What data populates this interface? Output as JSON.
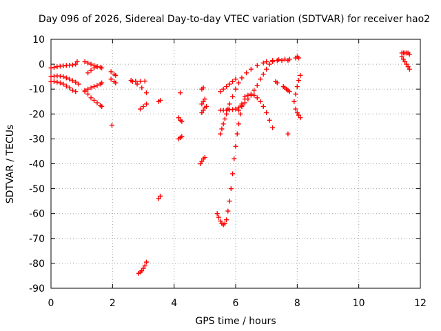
{
  "chart_data": {
    "type": "scatter",
    "title": "Day 096 of 2026, Sidereal Day-to-day VTEC variation (SDTVAR) for receiver hao2",
    "xlabel": "GPS time / hours",
    "ylabel": "SDTVAR / TECUs",
    "xlim": [
      0,
      12
    ],
    "ylim": [
      -90,
      10
    ],
    "xticks": [
      0,
      2,
      4,
      6,
      8,
      10,
      12
    ],
    "yticks": [
      10,
      0,
      -10,
      -20,
      -30,
      -40,
      -50,
      -60,
      -70,
      -80,
      -90
    ],
    "grid": true,
    "marker": "plus",
    "marker_color": "#ff0000",
    "series": [
      {
        "points": [
          [
            0.0,
            -1.5
          ],
          [
            0.1,
            -1.3
          ],
          [
            0.2,
            -1.0
          ],
          [
            0.3,
            -0.8
          ],
          [
            0.4,
            -0.7
          ],
          [
            0.5,
            -0.5
          ],
          [
            0.6,
            -0.4
          ],
          [
            0.7,
            -0.3
          ],
          [
            0.8,
            0.0
          ],
          [
            0.85,
            1.0
          ]
        ]
      },
      {
        "points": [
          [
            0.0,
            -5.0
          ],
          [
            0.1,
            -4.8
          ],
          [
            0.2,
            -4.7
          ],
          [
            0.3,
            -4.8
          ],
          [
            0.4,
            -5.0
          ],
          [
            0.5,
            -5.5
          ],
          [
            0.6,
            -6.0
          ],
          [
            0.7,
            -6.6
          ],
          [
            0.8,
            -7.2
          ],
          [
            0.9,
            -8.0
          ]
        ]
      },
      {
        "points": [
          [
            0.0,
            -7.0
          ],
          [
            0.1,
            -7.0
          ],
          [
            0.2,
            -7.2
          ],
          [
            0.3,
            -7.5
          ],
          [
            0.4,
            -8.0
          ],
          [
            0.5,
            -8.8
          ],
          [
            0.6,
            -9.5
          ],
          [
            0.7,
            -10.5
          ],
          [
            0.8,
            -11.0
          ]
        ]
      },
      {
        "points": [
          [
            1.1,
            1.0
          ],
          [
            1.2,
            0.5
          ],
          [
            1.3,
            0.0
          ],
          [
            1.4,
            -0.5
          ],
          [
            1.5,
            -1.0
          ],
          [
            1.6,
            -1.2
          ],
          [
            1.65,
            -1.5
          ]
        ]
      },
      {
        "points": [
          [
            1.1,
            -10.5
          ],
          [
            1.2,
            -10.0
          ],
          [
            1.3,
            -9.5
          ],
          [
            1.4,
            -9.0
          ],
          [
            1.5,
            -8.5
          ],
          [
            1.6,
            -8.0
          ],
          [
            1.65,
            -7.5
          ]
        ]
      },
      {
        "points": [
          [
            1.1,
            -11.0
          ],
          [
            1.2,
            -12.0
          ],
          [
            1.3,
            -13.5
          ],
          [
            1.4,
            -14.5
          ],
          [
            1.5,
            -15.5
          ],
          [
            1.6,
            -16.5
          ],
          [
            1.65,
            -17.0
          ]
        ]
      },
      {
        "points": [
          [
            1.2,
            -3.5
          ],
          [
            1.3,
            -2.5
          ],
          [
            1.4,
            -1.5
          ],
          [
            1.5,
            -1.0
          ]
        ]
      },
      {
        "points": [
          [
            1.95,
            -3.0
          ],
          [
            2.05,
            -4.0
          ],
          [
            2.1,
            -4.5
          ]
        ]
      },
      {
        "points": [
          [
            1.95,
            -6.0
          ],
          [
            2.05,
            -7.0
          ],
          [
            2.1,
            -7.5
          ]
        ]
      },
      {
        "points": [
          [
            1.98,
            -24.5
          ]
        ]
      },
      {
        "points": [
          [
            2.6,
            -6.5
          ],
          [
            2.75,
            -6.8
          ],
          [
            2.9,
            -6.9
          ],
          [
            3.05,
            -6.8
          ]
        ]
      },
      {
        "points": [
          [
            2.65,
            -7.0
          ],
          [
            2.8,
            -8.0
          ],
          [
            2.95,
            -9.5
          ],
          [
            3.1,
            -11.5
          ]
        ]
      },
      {
        "points": [
          [
            2.9,
            -18.0
          ],
          [
            3.0,
            -17.0
          ],
          [
            3.1,
            -16.0
          ]
        ]
      },
      {
        "points": [
          [
            2.85,
            -84.0
          ],
          [
            2.9,
            -83.5
          ],
          [
            2.95,
            -83.0
          ],
          [
            3.0,
            -82.0
          ],
          [
            3.05,
            -81.0
          ],
          [
            3.1,
            -79.5
          ]
        ]
      },
      {
        "points": [
          [
            3.5,
            -15.0
          ],
          [
            3.55,
            -14.5
          ]
        ]
      },
      {
        "points": [
          [
            3.5,
            -54.0
          ],
          [
            3.55,
            -53.0
          ]
        ]
      },
      {
        "points": [
          [
            4.2,
            -11.5
          ]
        ]
      },
      {
        "points": [
          [
            4.15,
            -21.5
          ],
          [
            4.2,
            -22.5
          ],
          [
            4.25,
            -23.0
          ]
        ]
      },
      {
        "points": [
          [
            4.15,
            -30.0
          ],
          [
            4.2,
            -29.5
          ],
          [
            4.25,
            -29.0
          ]
        ]
      },
      {
        "points": [
          [
            4.9,
            -10.0
          ],
          [
            4.95,
            -9.5
          ]
        ]
      },
      {
        "points": [
          [
            4.9,
            -16.0
          ],
          [
            4.95,
            -15.0
          ],
          [
            5.0,
            -14.0
          ]
        ]
      },
      {
        "points": [
          [
            4.9,
            -19.5
          ],
          [
            4.95,
            -18.5
          ],
          [
            5.0,
            -17.5
          ],
          [
            5.05,
            -17.0
          ]
        ]
      },
      {
        "points": [
          [
            4.85,
            -40.0
          ],
          [
            4.9,
            -39.0
          ],
          [
            4.95,
            -38.0
          ],
          [
            5.0,
            -37.5
          ]
        ]
      },
      {
        "points": [
          [
            5.5,
            -11.0
          ],
          [
            5.6,
            -10.0
          ],
          [
            5.7,
            -9.0
          ],
          [
            5.8,
            -8.0
          ],
          [
            5.9,
            -7.0
          ],
          [
            6.0,
            -6.0
          ]
        ]
      },
      {
        "points": [
          [
            5.5,
            -28.0
          ],
          [
            5.55,
            -26.0
          ],
          [
            5.6,
            -24.0
          ],
          [
            5.65,
            -22.0
          ],
          [
            5.7,
            -20.0
          ],
          [
            5.75,
            -18.0
          ],
          [
            5.8,
            -16.0
          ],
          [
            5.9,
            -13.0
          ],
          [
            6.0,
            -10.0
          ],
          [
            6.1,
            -7.5
          ],
          [
            6.2,
            -5.5
          ],
          [
            6.35,
            -3.5
          ],
          [
            6.5,
            -2.0
          ],
          [
            6.7,
            -0.5
          ],
          [
            6.9,
            0.5
          ],
          [
            7.0,
            1.0
          ],
          [
            7.2,
            1.5
          ],
          [
            7.4,
            1.8
          ],
          [
            7.6,
            2.0
          ],
          [
            7.75,
            2.0
          ]
        ]
      },
      {
        "points": [
          [
            5.5,
            -18.5
          ],
          [
            5.6,
            -18.5
          ],
          [
            5.7,
            -18.5
          ],
          [
            5.8,
            -18.3
          ],
          [
            5.9,
            -18.2
          ],
          [
            6.0,
            -18.0
          ],
          [
            6.1,
            -17.5
          ],
          [
            6.2,
            -16.5
          ],
          [
            6.3,
            -15.5
          ],
          [
            6.4,
            -14.0
          ],
          [
            6.5,
            -12.5
          ],
          [
            6.6,
            -10.5
          ],
          [
            6.7,
            -8.5
          ],
          [
            6.8,
            -6.0
          ],
          [
            6.9,
            -4.0
          ],
          [
            7.0,
            -2.0
          ],
          [
            7.1,
            0.0
          ],
          [
            7.2,
            1.0
          ],
          [
            7.35,
            1.5
          ],
          [
            7.5,
            1.5
          ],
          [
            7.7,
            1.5
          ]
        ]
      },
      {
        "points": [
          [
            6.1,
            -18.5
          ],
          [
            6.2,
            -16.0
          ],
          [
            6.3,
            -14.0
          ],
          [
            6.4,
            -12.5
          ],
          [
            6.5,
            -12.0
          ],
          [
            6.6,
            -12.5
          ],
          [
            6.7,
            -13.5
          ],
          [
            6.8,
            -15.0
          ],
          [
            6.9,
            -17.0
          ],
          [
            7.0,
            -19.5
          ],
          [
            7.1,
            -22.5
          ],
          [
            7.2,
            -25.5
          ]
        ]
      },
      {
        "points": [
          [
            5.4,
            -60.0
          ],
          [
            5.45,
            -61.5
          ],
          [
            5.5,
            -63.0
          ],
          [
            5.55,
            -64.0
          ],
          [
            5.6,
            -64.5
          ],
          [
            5.65,
            -64.0
          ],
          [
            5.7,
            -62.5
          ],
          [
            5.75,
            -59.0
          ],
          [
            5.8,
            -55.0
          ],
          [
            5.85,
            -50.0
          ],
          [
            5.9,
            -44.0
          ],
          [
            5.95,
            -38.0
          ],
          [
            6.0,
            -33.0
          ],
          [
            6.05,
            -28.0
          ],
          [
            6.1,
            -24.0
          ],
          [
            6.15,
            -20.0
          ],
          [
            6.2,
            -17.0
          ],
          [
            6.3,
            -13.0
          ]
        ]
      },
      {
        "points": [
          [
            7.3,
            -7.0
          ],
          [
            7.35,
            -7.5
          ]
        ]
      },
      {
        "points": [
          [
            7.55,
            -9.0
          ],
          [
            7.6,
            -9.5
          ],
          [
            7.65,
            -10.0
          ],
          [
            7.7,
            -10.5
          ],
          [
            7.75,
            -11.0
          ]
        ]
      },
      {
        "points": [
          [
            7.7,
            -28.0
          ]
        ]
      },
      {
        "points": [
          [
            7.95,
            2.5
          ],
          [
            8.0,
            3.0
          ],
          [
            8.05,
            2.5
          ]
        ]
      },
      {
        "points": [
          [
            7.95,
            -18.0
          ],
          [
            8.0,
            -19.5
          ],
          [
            8.05,
            -20.5
          ],
          [
            8.1,
            -21.5
          ]
        ]
      },
      {
        "points": [
          [
            7.9,
            -15.0
          ],
          [
            7.95,
            -12.0
          ],
          [
            8.0,
            -9.0
          ],
          [
            8.05,
            -6.5
          ],
          [
            8.1,
            -4.5
          ]
        ]
      },
      {
        "points": [
          [
            11.4,
            4.5
          ],
          [
            11.45,
            4.5
          ],
          [
            11.5,
            4.5
          ],
          [
            11.55,
            4.5
          ],
          [
            11.6,
            4.5
          ],
          [
            11.65,
            4.0
          ]
        ]
      },
      {
        "points": [
          [
            11.4,
            3.0
          ],
          [
            11.45,
            2.0
          ],
          [
            11.5,
            1.0
          ],
          [
            11.55,
            0.0
          ],
          [
            11.6,
            -1.0
          ],
          [
            11.65,
            -2.0
          ]
        ]
      }
    ]
  }
}
